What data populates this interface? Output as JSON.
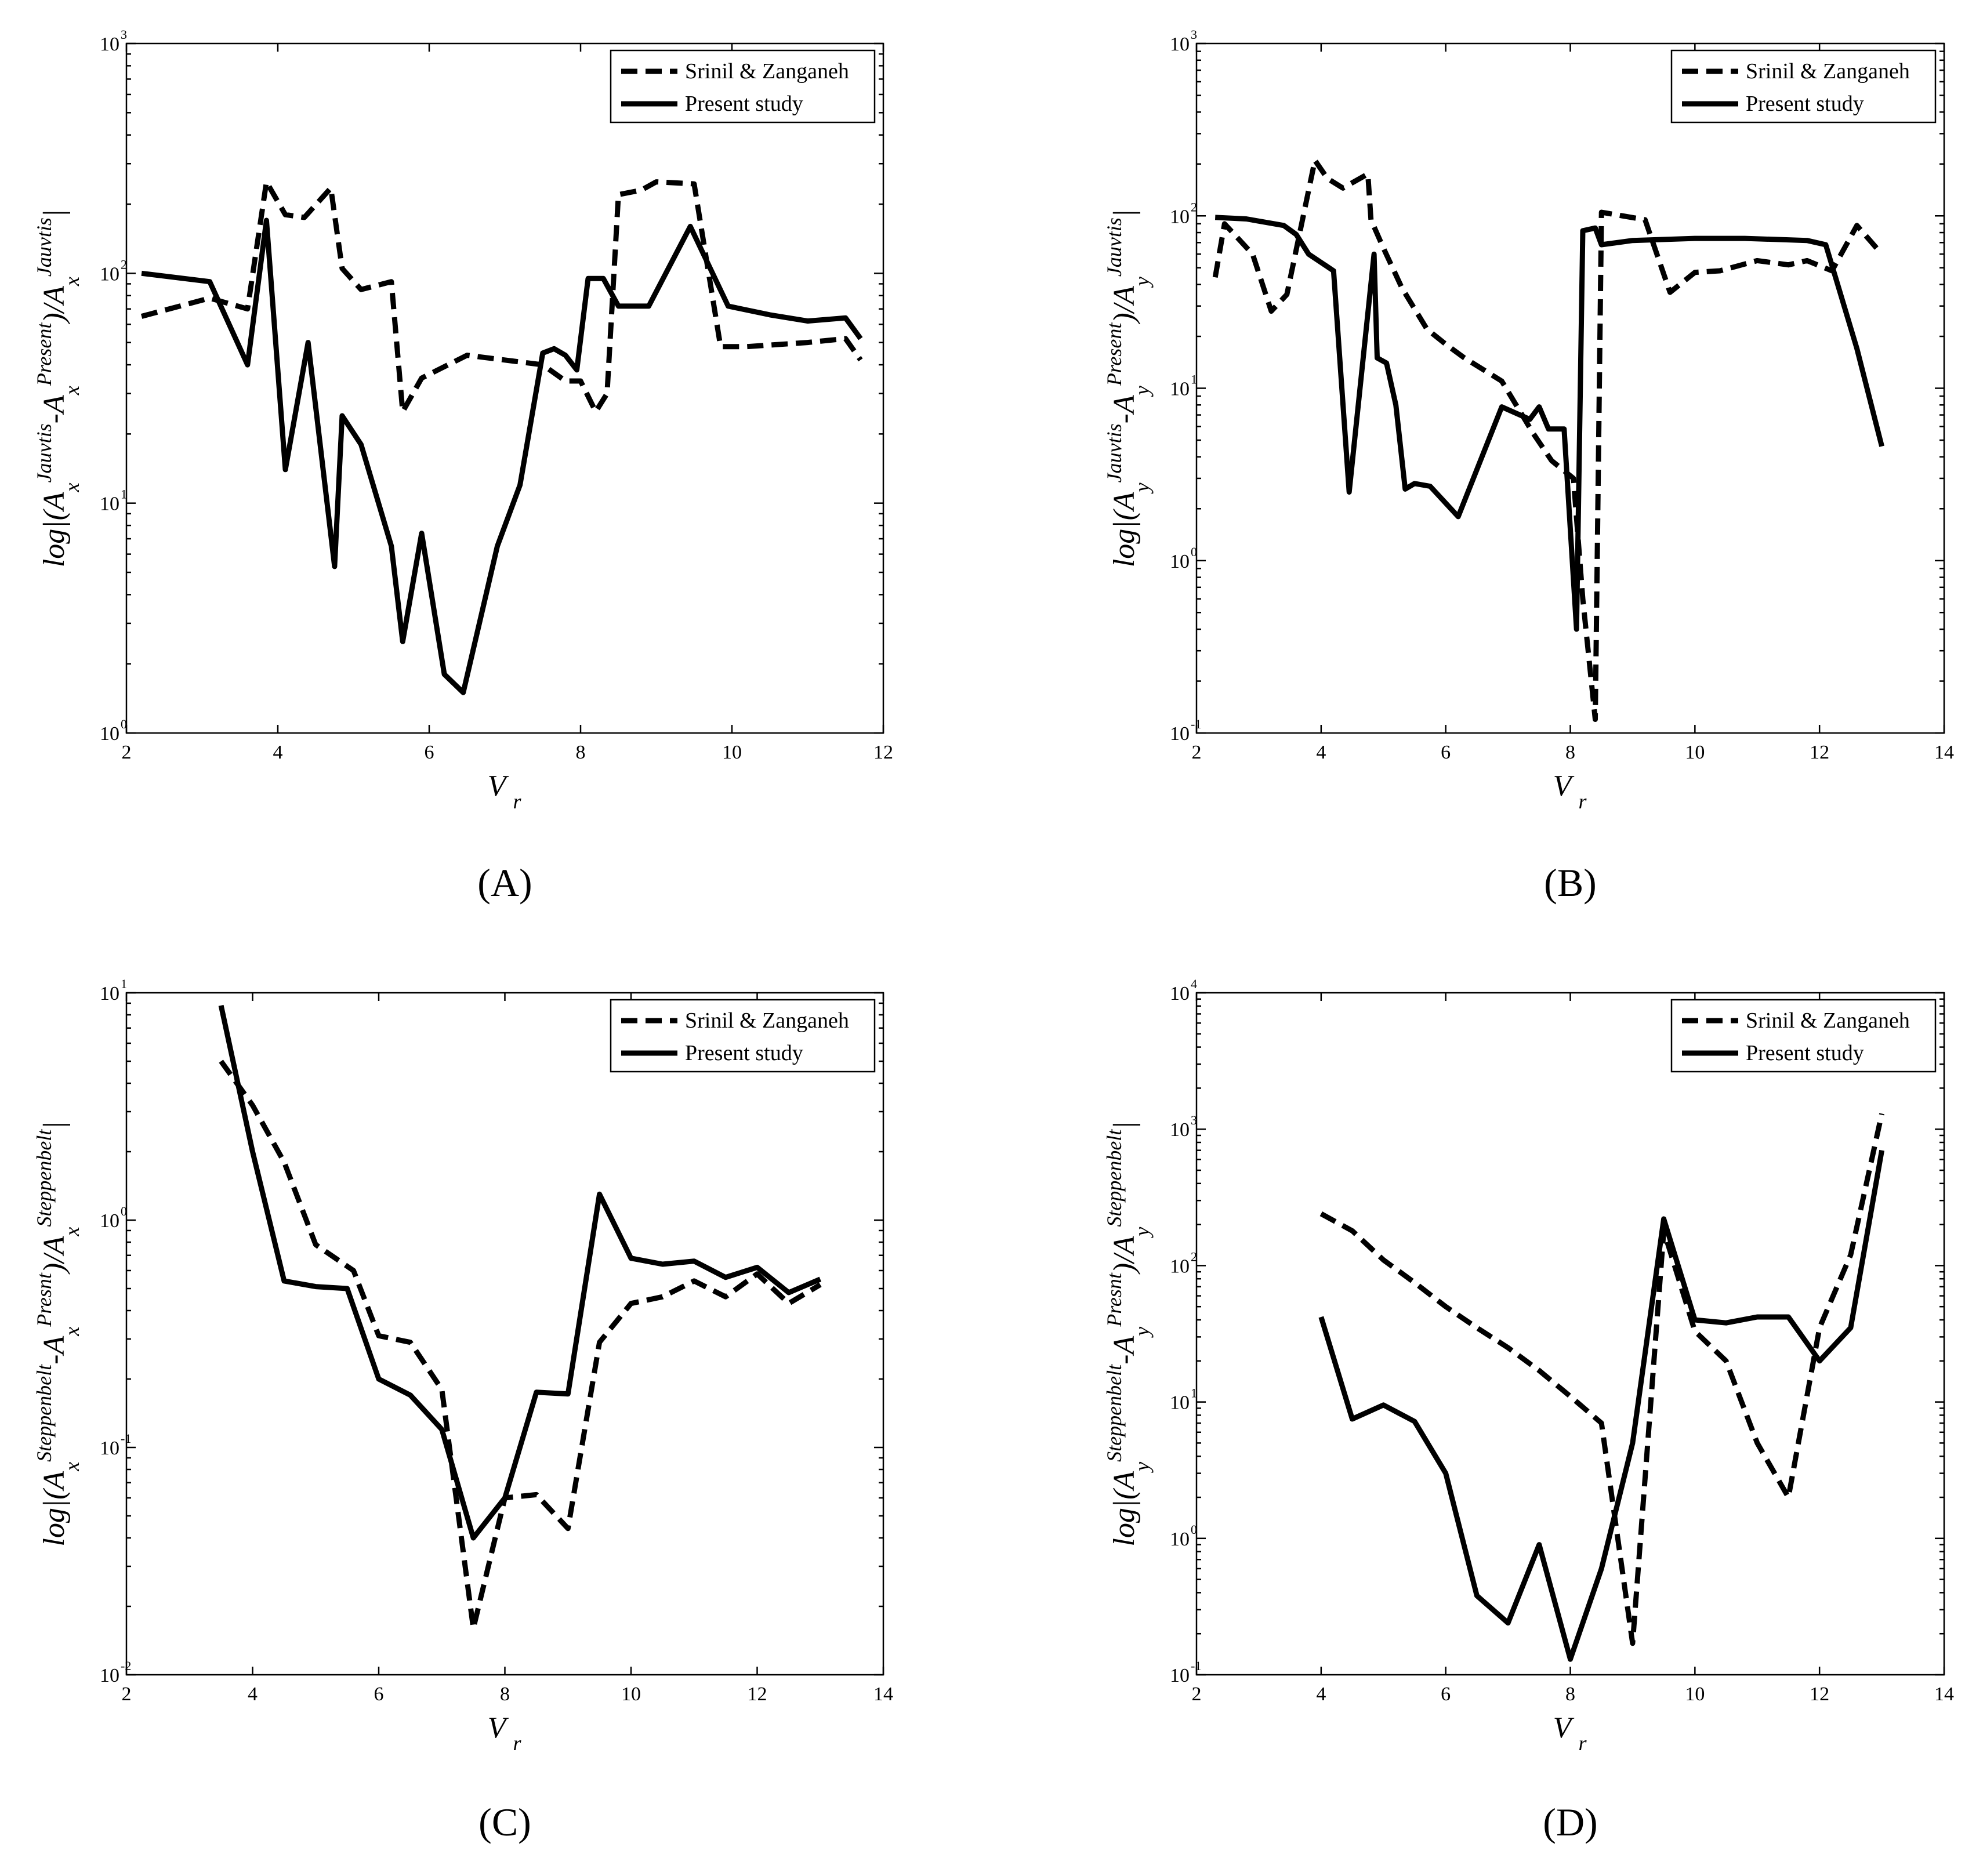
{
  "legend": {
    "series_1": "Srinil & Zanganeh",
    "series_2": "Present study"
  },
  "xlabel": {
    "main": "V",
    "sub": "r"
  },
  "chart_data": [
    {
      "id": "A",
      "panel_label": "(A)",
      "type": "line",
      "yscale": "log",
      "xlim": [
        2,
        12
      ],
      "xticks": [
        2,
        4,
        6,
        8,
        10,
        12
      ],
      "ylim_exp": [
        0,
        3
      ],
      "ylabel": "log|(A_x^{Jauvtis}-A_x^{Present})/A_x^{Jauvtis}|",
      "series": [
        {
          "name": "Srinil & Zanganeh",
          "style": "dashed",
          "x": [
            2.2,
            3.1,
            3.6,
            3.85,
            4.1,
            4.35,
            4.7,
            4.85,
            5.1,
            5.5,
            5.65,
            5.9,
            6.5,
            7.5,
            7.8,
            8.0,
            8.2,
            8.35,
            8.5,
            8.8,
            9.0,
            9.5,
            9.85,
            10.2,
            11.0,
            11.5,
            11.7
          ],
          "y": [
            65,
            78,
            70,
            250,
            180,
            175,
            235,
            105,
            85,
            92,
            25,
            35,
            44,
            40,
            34,
            34,
            25,
            30,
            220,
            230,
            250,
            245,
            48,
            48,
            50,
            52,
            42
          ]
        },
        {
          "name": "Present study",
          "style": "solid",
          "x": [
            2.2,
            3.1,
            3.6,
            3.85,
            4.1,
            4.4,
            4.75,
            4.85,
            5.1,
            5.5,
            5.65,
            5.9,
            6.2,
            6.45,
            6.9,
            7.2,
            7.5,
            7.65,
            7.8,
            7.95,
            8.1,
            8.3,
            8.5,
            8.9,
            9.45,
            9.95,
            10.5,
            11.0,
            11.5,
            11.7
          ],
          "y": [
            100,
            92,
            40,
            170,
            14,
            50,
            5.3,
            24,
            18,
            6.5,
            2.5,
            7.4,
            1.8,
            1.5,
            6.5,
            12,
            45,
            47,
            44,
            38,
            95,
            95,
            72,
            72,
            160,
            72,
            66,
            62,
            64,
            52
          ]
        }
      ]
    },
    {
      "id": "B",
      "panel_label": "(B)",
      "type": "line",
      "yscale": "log",
      "xlim": [
        2,
        14
      ],
      "xticks": [
        2,
        4,
        6,
        8,
        10,
        12,
        14
      ],
      "ylim_exp": [
        -1,
        3
      ],
      "ylabel": "log|(A_y^{Jauvtis}-A_y^{Present})/A_y^{Jauvtis}|",
      "series": [
        {
          "name": "Srinil & Zanganeh",
          "style": "dashed",
          "x": [
            2.3,
            2.45,
            2.9,
            3.2,
            3.45,
            3.9,
            4.1,
            4.35,
            4.75,
            4.8,
            5.0,
            5.3,
            5.7,
            6.0,
            6.3,
            6.9,
            7.4,
            7.7,
            8.05,
            8.2,
            8.4,
            8.5,
            9.2,
            9.6,
            10.0,
            10.4,
            11.0,
            11.5,
            11.8,
            12.2,
            12.6,
            13.0
          ],
          "y": [
            44,
            90,
            60,
            28,
            35,
            210,
            165,
            145,
            175,
            95,
            65,
            38,
            22,
            18,
            15,
            11,
            5.5,
            3.8,
            3.0,
            0.6,
            0.12,
            105,
            95,
            36,
            47,
            48,
            55,
            52,
            55,
            48,
            88,
            60
          ]
        },
        {
          "name": "Present study",
          "style": "solid",
          "x": [
            2.3,
            2.8,
            3.4,
            3.6,
            3.8,
            4.2,
            4.45,
            4.85,
            4.9,
            5.05,
            5.2,
            5.35,
            5.5,
            5.75,
            6.2,
            6.9,
            7.35,
            7.5,
            7.65,
            7.9,
            8.1,
            8.2,
            8.4,
            8.5,
            9.0,
            10.0,
            10.8,
            11.8,
            12.1,
            12.6,
            13.0
          ],
          "y": [
            98,
            96,
            88,
            78,
            60,
            48,
            2.5,
            60,
            15,
            14,
            8,
            2.6,
            2.8,
            2.7,
            1.8,
            7.8,
            6.6,
            7.8,
            5.8,
            5.8,
            0.4,
            82,
            85,
            68,
            72,
            74,
            74,
            72,
            68,
            17,
            4.6
          ]
        }
      ]
    },
    {
      "id": "C",
      "panel_label": "(C)",
      "type": "line",
      "yscale": "log",
      "xlim": [
        2,
        14
      ],
      "xticks": [
        2,
        4,
        6,
        8,
        10,
        12,
        14
      ],
      "ylim_exp": [
        -2,
        1
      ],
      "ylabel": "log|(A_x^{Steppenbelt}-A_x^{Presnt})/A_x^{Steppenbelt}|",
      "series": [
        {
          "name": "Srinil & Zanganeh",
          "style": "dashed",
          "x": [
            3.5,
            4.0,
            4.5,
            5.0,
            5.6,
            6.0,
            6.5,
            7.0,
            7.5,
            8.0,
            8.5,
            9.0,
            9.5,
            10.0,
            10.5,
            11.0,
            11.5,
            12.0,
            12.5,
            13.0
          ],
          "y": [
            5.0,
            3.2,
            1.8,
            0.78,
            0.6,
            0.31,
            0.29,
            0.18,
            0.016,
            0.06,
            0.062,
            0.044,
            0.29,
            0.43,
            0.46,
            0.54,
            0.46,
            0.58,
            0.43,
            0.52
          ]
        },
        {
          "name": "Present study",
          "style": "solid",
          "x": [
            3.5,
            4.0,
            4.5,
            5.0,
            5.5,
            6.0,
            6.5,
            7.0,
            7.5,
            8.0,
            8.5,
            9.0,
            9.5,
            10.0,
            10.5,
            11.0,
            11.5,
            12.0,
            12.5,
            13.0
          ],
          "y": [
            8.8,
            2.0,
            0.54,
            0.51,
            0.5,
            0.2,
            0.17,
            0.12,
            0.04,
            0.06,
            0.175,
            0.172,
            1.3,
            0.68,
            0.64,
            0.66,
            0.56,
            0.62,
            0.48,
            0.55
          ]
        }
      ]
    },
    {
      "id": "D",
      "panel_label": "(D)",
      "type": "line",
      "yscale": "log",
      "xlim": [
        2,
        14
      ],
      "xticks": [
        2,
        4,
        6,
        8,
        10,
        12,
        14
      ],
      "ylim_exp": [
        -1,
        4
      ],
      "ylabel": "log|(A_y^{Steppenbelt}-A_y^{Presnt})/A_y^{Steppenbelt}|",
      "series": [
        {
          "name": "Srinil & Zanganeh",
          "style": "dashed",
          "x": [
            4.0,
            4.5,
            5.0,
            5.5,
            6.0,
            6.5,
            7.0,
            7.5,
            8.0,
            8.5,
            9.0,
            9.5,
            10.0,
            10.5,
            11.0,
            11.5,
            12.0,
            12.5,
            13.0
          ],
          "y": [
            240,
            180,
            110,
            75,
            50,
            35,
            25,
            17,
            11,
            7,
            0.17,
            180,
            33,
            20,
            5,
            2,
            35,
            120,
            1300
          ]
        },
        {
          "name": "Present study",
          "style": "solid",
          "x": [
            4.0,
            4.5,
            5.0,
            5.5,
            6.0,
            6.5,
            7.0,
            7.5,
            8.0,
            8.5,
            9.0,
            9.5,
            10.0,
            10.5,
            11.0,
            11.5,
            12.0,
            12.5,
            13.0
          ],
          "y": [
            42,
            7.5,
            9.5,
            7.2,
            3.0,
            0.38,
            0.24,
            0.9,
            0.13,
            0.6,
            5,
            220,
            40,
            38,
            42,
            42,
            20,
            35,
            700
          ]
        }
      ]
    }
  ]
}
